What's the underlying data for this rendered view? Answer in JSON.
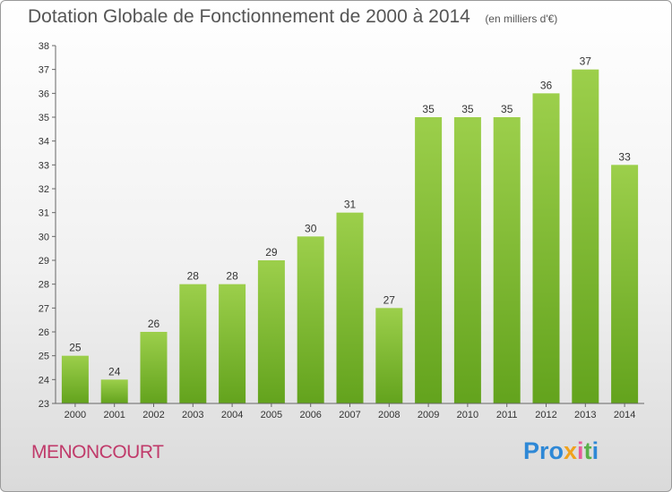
{
  "header": {
    "title": "Dotation Globale de Fonctionnement de 2000 à 2014",
    "subtitle": "(en milliers d'€)"
  },
  "footer": {
    "town": "MENONCOURT",
    "logo_text": "Proxiti"
  },
  "colors": {
    "bar_light": "#9ccf4b",
    "bar_dark": "#63a31d",
    "town": "#c03a6a"
  },
  "chart_data": {
    "type": "bar",
    "title": "Dotation Globale de Fonctionnement de 2000 à 2014",
    "subtitle": "(en milliers d'€)",
    "xlabel": "",
    "ylabel": "",
    "categories": [
      "2000",
      "2001",
      "2002",
      "2003",
      "2004",
      "2005",
      "2006",
      "2007",
      "2008",
      "2009",
      "2010",
      "2011",
      "2012",
      "2013",
      "2014"
    ],
    "values": [
      25,
      24,
      26,
      28,
      28,
      29,
      30,
      31,
      27,
      35,
      35,
      35,
      36,
      37,
      33
    ],
    "ylim": [
      23,
      38
    ],
    "yticks": [
      23,
      24,
      25,
      26,
      27,
      28,
      29,
      30,
      31,
      32,
      33,
      34,
      35,
      36,
      37,
      38
    ],
    "grid": false,
    "data_labels": true
  }
}
